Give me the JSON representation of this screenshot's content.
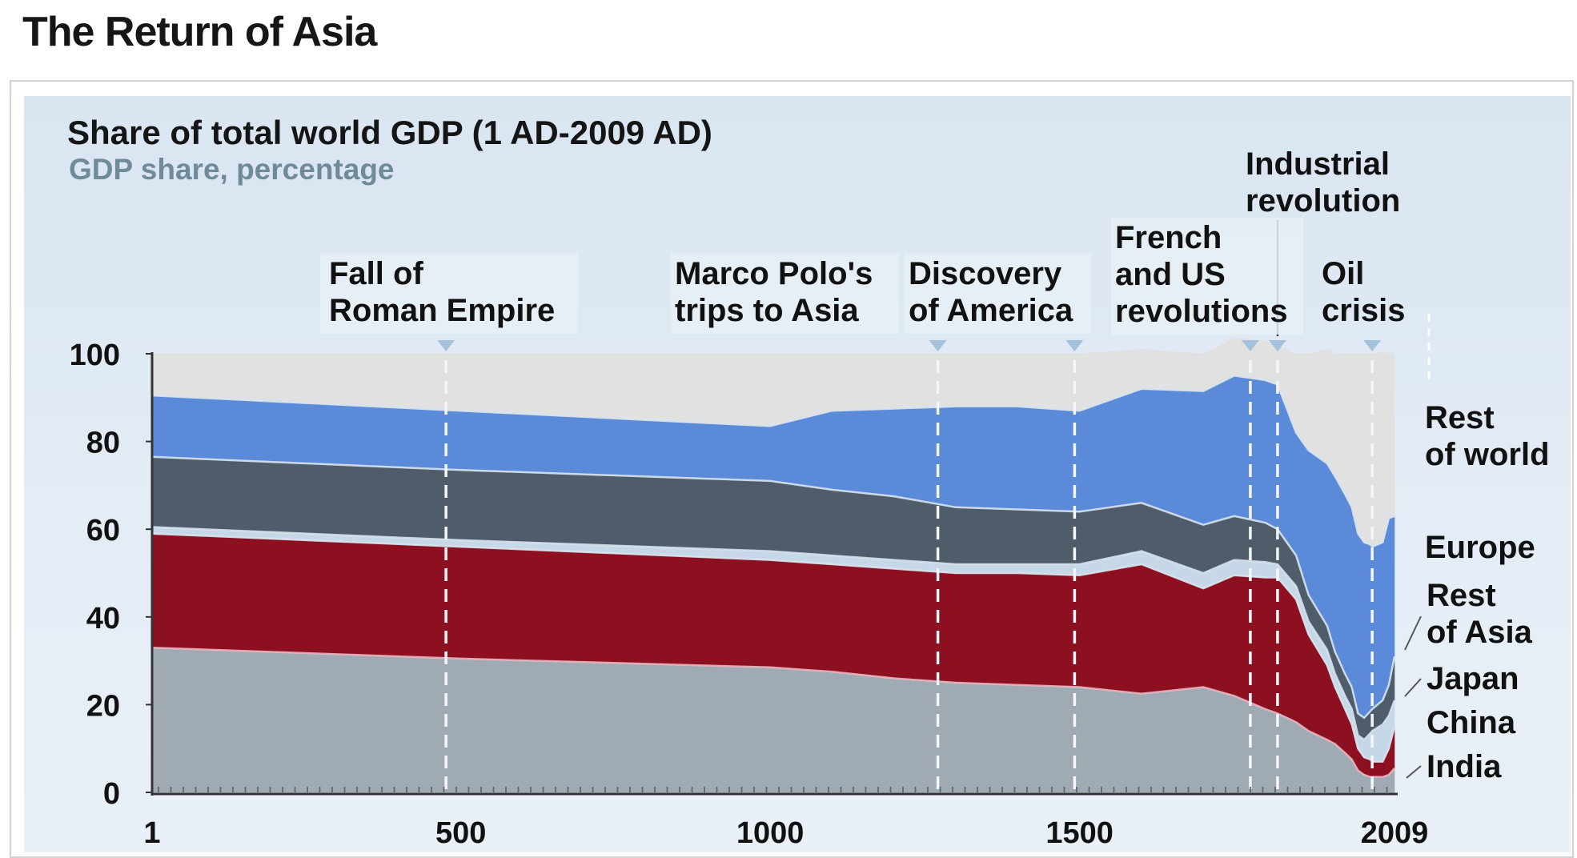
{
  "page": {
    "title": "The Return of Asia"
  },
  "chart_data": {
    "type": "area",
    "title": "Share of total world GDP (1 AD-2009 AD)",
    "subtitle": "GDP share, percentage",
    "xlabel": "",
    "ylabel": "",
    "stacked": true,
    "ylim": [
      0,
      100
    ],
    "xlim": [
      1,
      2009
    ],
    "x_ticks": [
      "1",
      "500",
      "1000",
      "1500",
      "2009"
    ],
    "y_ticks": [
      "0",
      "20",
      "40",
      "60",
      "80",
      "100"
    ],
    "x": [
      1,
      500,
      1000,
      1100,
      1200,
      1300,
      1400,
      1500,
      1600,
      1700,
      1750,
      1800,
      1820,
      1850,
      1870,
      1900,
      1913,
      1929,
      1940,
      1950,
      1960,
      1970,
      1973,
      1990,
      2000,
      2009
    ],
    "series": [
      {
        "name": "India",
        "color": "#a0aab2",
        "values": [
          33,
          30.5,
          28.5,
          27.5,
          26,
          25,
          24.5,
          24,
          22.5,
          24,
          22,
          19,
          18,
          16,
          14,
          12,
          11,
          9,
          7.5,
          5,
          4,
          3.5,
          3.5,
          3.5,
          4,
          5.5
        ]
      },
      {
        "name": "China",
        "color": "#8c1020",
        "values": [
          26,
          25.5,
          24.5,
          24.5,
          25,
          25,
          25.5,
          25.5,
          29.5,
          22.5,
          27.5,
          30,
          31,
          28,
          22,
          17,
          13,
          10,
          8,
          5,
          4,
          4,
          3.5,
          3.5,
          6,
          9.5
        ]
      },
      {
        "name": "Japan",
        "color": "#c6d8e8",
        "values": [
          1.5,
          1.5,
          2,
          2,
          2,
          2,
          2,
          2.5,
          3,
          3.5,
          3.5,
          3.5,
          3,
          3,
          3,
          3.5,
          3,
          3,
          3.5,
          3,
          4,
          6,
          7,
          8.5,
          7.5,
          6
        ]
      },
      {
        "name": "Rest of Asia",
        "color": "#4e5d69",
        "values": [
          16,
          16,
          16,
          15,
          14.5,
          13,
          12.5,
          12,
          11,
          11,
          10,
          9,
          8,
          7,
          6,
          5.5,
          5,
          5,
          5,
          5,
          5,
          5,
          5,
          5.5,
          7,
          10
        ]
      },
      {
        "name": "Europe",
        "color": "#5b8bd8",
        "values": [
          14,
          13.5,
          12.5,
          18,
          20,
          23,
          23.5,
          23,
          26,
          30.5,
          32,
          32.5,
          33,
          28,
          33,
          37,
          40,
          41,
          41,
          41,
          40,
          38,
          37,
          36,
          38,
          32
        ]
      },
      {
        "name": "Rest of world",
        "color": "#e1e1e1",
        "values": [
          9.5,
          13,
          16.5,
          13,
          12.5,
          12,
          12,
          13,
          9,
          8.5,
          8.5,
          9,
          9,
          18,
          22,
          26,
          28,
          32,
          35,
          41,
          43,
          43.5,
          44,
          43.5,
          37.5,
          37
        ]
      }
    ],
    "legend": [
      "Rest of world",
      "Europe",
      "Rest of Asia",
      "Japan",
      "China",
      "India"
    ],
    "legend_placement": "right",
    "grid": false,
    "events": [
      {
        "lines": [
          "Fall of",
          "Roman Empire"
        ],
        "year": 476
      },
      {
        "lines": [
          "Marco Polo's",
          "trips to Asia"
        ],
        "year": 1271
      },
      {
        "lines": [
          "Discovery",
          "of America"
        ],
        "year": 1492
      },
      {
        "lines": [
          "French",
          "and US",
          "revolutions"
        ],
        "year": 1776
      },
      {
        "lines": [
          "Industrial",
          "revolution"
        ],
        "year": 1820
      },
      {
        "lines": [
          "Oil",
          "crisis"
        ],
        "year": 1973
      }
    ],
    "labels": {
      "rest_of_world": [
        "Rest",
        "of world"
      ],
      "europe": [
        "Europe"
      ],
      "rest_of_asia": [
        "Rest",
        "of Asia"
      ],
      "japan": [
        "Japan"
      ],
      "china": [
        "China"
      ],
      "india": [
        "India"
      ]
    }
  }
}
